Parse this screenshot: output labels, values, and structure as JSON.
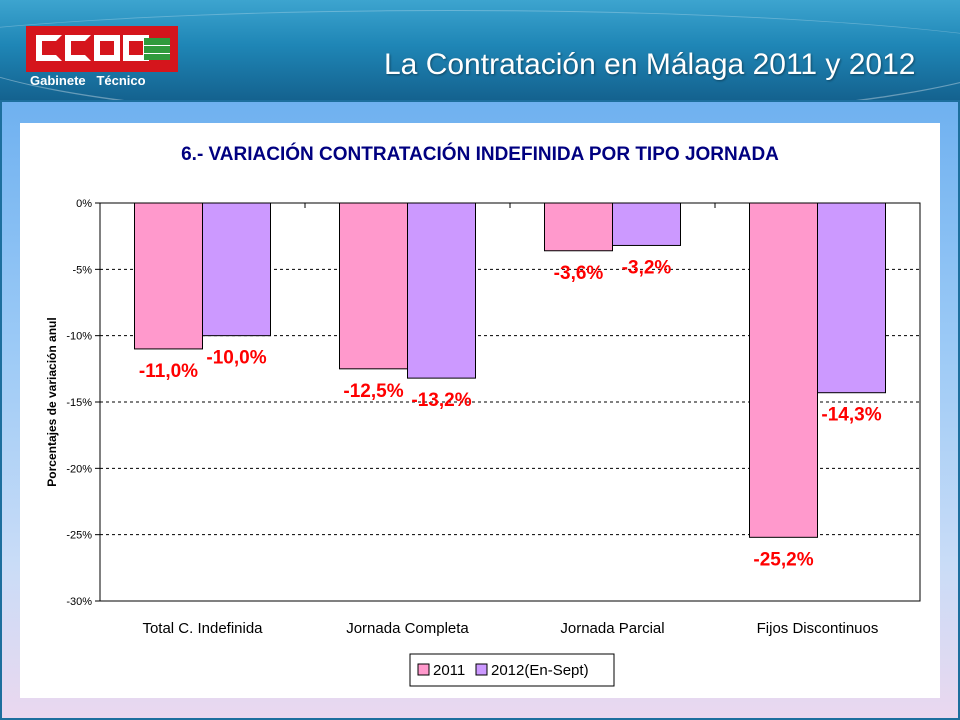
{
  "header": {
    "title": "La Contratación en Málaga 2011 y 2012",
    "logo_text": "CCOO",
    "logo_subtitle": "Gabinete   Técnico"
  },
  "chart_data": {
    "type": "bar",
    "title": "6.- VARIACIÓN CONTRATACIÓN INDEFINIDA POR TIPO JORNADA",
    "ylabel": "Porcentajes de variación anul",
    "xlabel": "",
    "categories": [
      "Total C. Indefinida",
      "Jornada Completa",
      "Jornada Parcial",
      "Fijos Discontinuos"
    ],
    "series": [
      {
        "name": "2011",
        "values": [
          -11.0,
          -12.5,
          -3.6,
          -25.2
        ],
        "labels": [
          "-11,0%",
          "-12,5%",
          "-3,6%",
          "-25,2%"
        ],
        "color": "#ff99cc"
      },
      {
        "name": "2012(En-Sept)",
        "values": [
          -10.0,
          -13.2,
          -3.2,
          -14.3
        ],
        "labels": [
          "-10,0%",
          "-13,2%",
          "-3,2%",
          "-14,3%"
        ],
        "color": "#cc99ff"
      }
    ],
    "yticks": [
      "0%",
      "-5%",
      "-10%",
      "-15%",
      "-20%",
      "-25%",
      "-30%"
    ],
    "ytick_values": [
      0,
      -5,
      -10,
      -15,
      -20,
      -25,
      -30
    ],
    "ylim": [
      -30,
      0
    ],
    "grid": true,
    "legend": "bottom-center",
    "label_color": "#ff0000",
    "title_color": "#000080"
  }
}
